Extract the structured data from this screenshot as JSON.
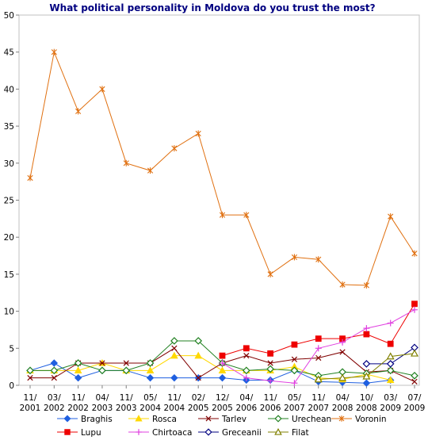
{
  "chart_data": {
    "type": "line",
    "title": "What political personality in Moldova do you trust the most?",
    "ylim": [
      0,
      50
    ],
    "y_ticks": [
      0,
      5,
      10,
      15,
      20,
      25,
      30,
      35,
      40,
      45,
      50
    ],
    "grid": false,
    "legend_position": "bottom",
    "x_tick_labels": [
      [
        "11/",
        "2001"
      ],
      [
        "03/",
        "2002"
      ],
      [
        "11/",
        "2002"
      ],
      [
        "04/",
        "2003"
      ],
      [
        "11/",
        "2003"
      ],
      [
        "05/",
        "2004"
      ],
      [
        "11/",
        "2004"
      ],
      [
        "02/",
        "2005"
      ],
      [
        "12/",
        "2005"
      ],
      [
        "04/",
        "2006"
      ],
      [
        "11/",
        "2006"
      ],
      [
        "05/",
        "2007"
      ],
      [
        "11/",
        "2007"
      ],
      [
        "04/",
        "2008"
      ],
      [
        "10/",
        "2008"
      ],
      [
        "03/",
        "2009"
      ],
      [
        "07/",
        "2009"
      ]
    ],
    "series": [
      {
        "name": "Braghis",
        "color": "#1f5fe0",
        "marker": "diamond-filled",
        "values": [
          2,
          3,
          1,
          2,
          2,
          1,
          1,
          1,
          1,
          0.7,
          0.7,
          2,
          0.5,
          0.4,
          0.3,
          0.7,
          null
        ]
      },
      {
        "name": "Rosca",
        "color": "#ffd800",
        "marker": "triangle-filled",
        "values": [
          2,
          2,
          2,
          3,
          2,
          2,
          4,
          4,
          2,
          2,
          2,
          2.5,
          1,
          0.8,
          1.5,
          0.7,
          null
        ]
      },
      {
        "name": "Tarlev",
        "color": "#800000",
        "marker": "x",
        "values": [
          1,
          1,
          3,
          3,
          3,
          3,
          5,
          1,
          3,
          4,
          3,
          3.5,
          3.7,
          4.5,
          1.8,
          2,
          0.5
        ]
      },
      {
        "name": "Urechean",
        "color": "#208020",
        "marker": "diamond-open",
        "values": [
          2,
          2,
          3,
          2,
          2,
          3,
          6,
          6,
          3,
          2,
          2.2,
          2,
          1.3,
          1.8,
          1.6,
          2,
          1.3
        ]
      },
      {
        "name": "Voronin",
        "color": "#e07010",
        "marker": "asterisk",
        "values": [
          28,
          45,
          37,
          40,
          30,
          29,
          32,
          34,
          23,
          23,
          15,
          17.3,
          17,
          13.6,
          13.5,
          22.8,
          17.8
        ]
      },
      {
        "name": "Lupu",
        "color": "#ee0000",
        "marker": "square-filled",
        "values": [
          null,
          null,
          null,
          null,
          null,
          null,
          null,
          null,
          4,
          5,
          4.3,
          5.5,
          6.3,
          6.3,
          6.9,
          5.6,
          11
        ]
      },
      {
        "name": "Chirtoaca",
        "color": "#e040e0",
        "marker": "plus",
        "values": [
          null,
          null,
          null,
          null,
          null,
          null,
          null,
          null,
          3,
          1,
          0.6,
          0.3,
          5,
          5.8,
          7.7,
          8.4,
          10.2
        ]
      },
      {
        "name": "Greceanii",
        "color": "#000080",
        "marker": "diamond-open",
        "values": [
          null,
          null,
          null,
          null,
          null,
          null,
          null,
          null,
          null,
          null,
          null,
          null,
          null,
          null,
          2.9,
          2.9,
          5.1
        ]
      },
      {
        "name": "Filat",
        "color": "#808000",
        "marker": "triangle-open",
        "values": [
          null,
          null,
          null,
          null,
          null,
          null,
          null,
          null,
          null,
          null,
          null,
          null,
          0.8,
          1,
          1.2,
          3.9,
          4.3
        ]
      }
    ]
  }
}
